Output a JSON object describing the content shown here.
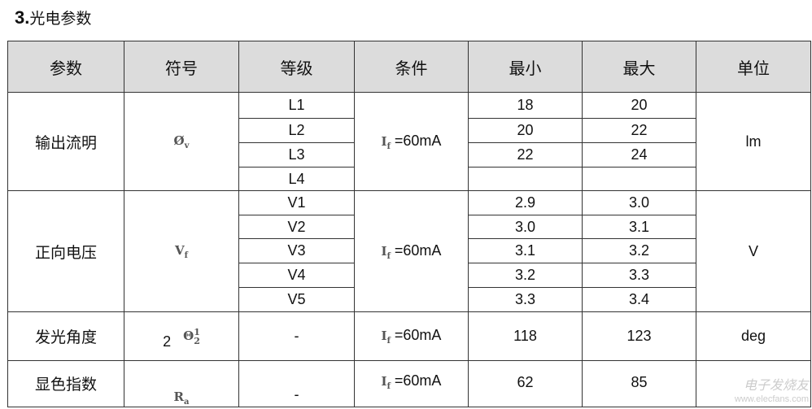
{
  "title": {
    "num": "3.",
    "text": "光电参数"
  },
  "headers": [
    "参数",
    "符号",
    "等级",
    "条件",
    "最小",
    "最大",
    "单位"
  ],
  "groups": [
    {
      "param": "输出流明",
      "symbol": "Øv",
      "cond": "If =60mA",
      "unit": "lm",
      "rows": [
        {
          "grade": "L1",
          "min": "18",
          "max": "20"
        },
        {
          "grade": "L2",
          "min": "20",
          "max": "22"
        },
        {
          "grade": "L3",
          "min": "22",
          "max": "24"
        },
        {
          "grade": "L4",
          "min": "",
          "max": ""
        }
      ]
    },
    {
      "param": "正向电压",
      "symbol": "Vf",
      "cond": "If =60mA",
      "unit": "V",
      "rows": [
        {
          "grade": "V1",
          "min": "2.9",
          "max": "3.0"
        },
        {
          "grade": "V2",
          "min": "3.0",
          "max": "3.1"
        },
        {
          "grade": "V3",
          "min": "3.1",
          "max": "3.2"
        },
        {
          "grade": "V4",
          "min": "3.2",
          "max": "3.3"
        },
        {
          "grade": "V5",
          "min": "3.3",
          "max": "3.4"
        }
      ]
    },
    {
      "param": "发光角度",
      "symbol": "2Θ1/2",
      "cond": "If =60mA",
      "unit": "deg",
      "rows": [
        {
          "grade": "-",
          "min": "118",
          "max": "123"
        }
      ]
    },
    {
      "param": "显色指数",
      "symbol": "Ra",
      "cond": "If =60mA",
      "unit": "",
      "rows": [
        {
          "grade": "-",
          "min": "62",
          "max": "85"
        }
      ]
    }
  ],
  "watermark": {
    "cn": "电子发烧友",
    "url": "www.elecfans.com"
  }
}
